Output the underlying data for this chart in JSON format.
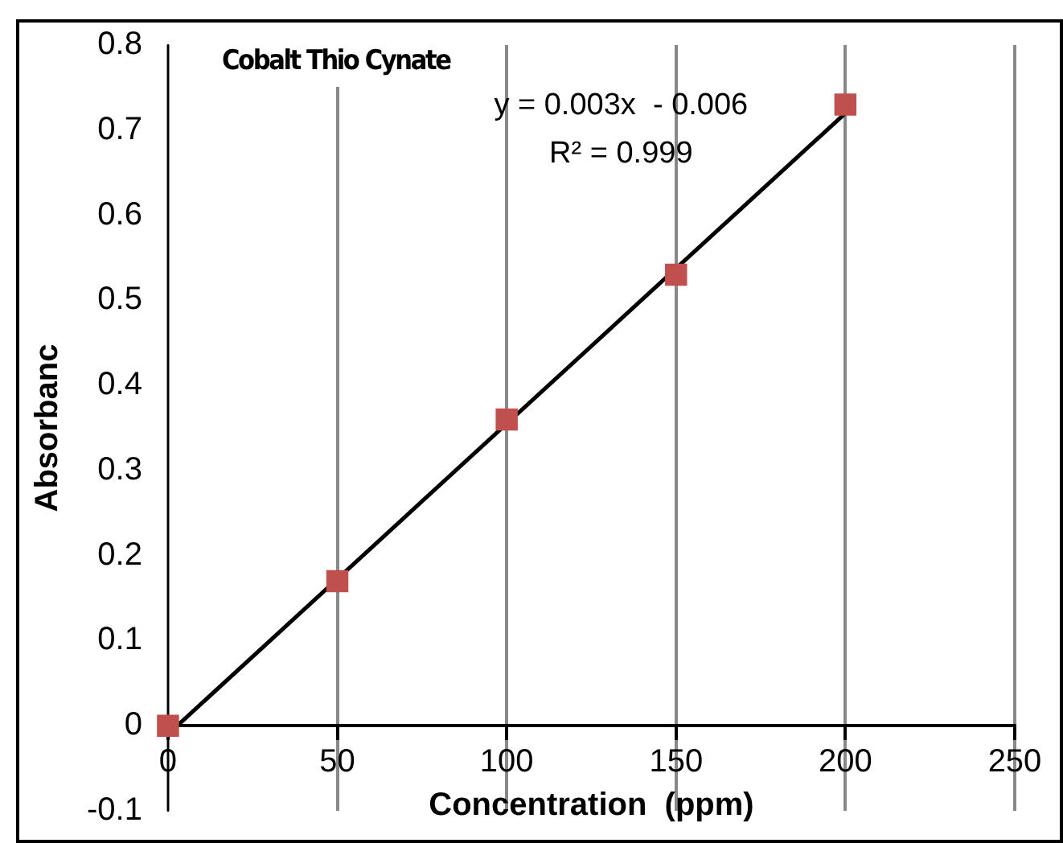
{
  "chart_data": {
    "type": "scatter",
    "title": "Cobalt Thio Cynate",
    "xlabel": "Concentration  (ppm)",
    "ylabel": "Absorbanc",
    "x": [
      0,
      50,
      100,
      150,
      200
    ],
    "series": [
      {
        "color": "#c0504d",
        "marker": "square",
        "values": [
          0,
          0.17,
          0.36,
          0.53,
          0.73
        ]
      },
      {
        "type": "line",
        "color": "#000000",
        "marker": "none",
        "x": [
          0,
          200
        ],
        "values": [
          -0.01,
          0.72
        ]
      }
    ],
    "annotations": [
      "y = 0.003x  - 0.006",
      "R² = 0.999"
    ],
    "xlim": [
      0,
      250
    ],
    "xticks": [
      0,
      50,
      100,
      150,
      200,
      250
    ],
    "ylim": [
      -0.1,
      0.8
    ],
    "yticks": [
      -0.1,
      0,
      0.1,
      0.2,
      0.3,
      0.4,
      0.5,
      0.6,
      0.7,
      0.8
    ],
    "grid": "x"
  }
}
